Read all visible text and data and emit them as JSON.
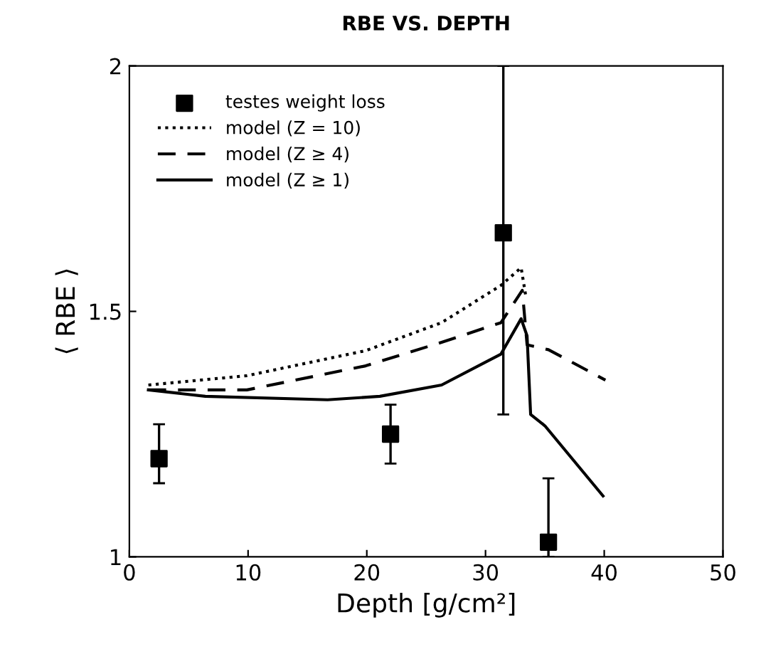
{
  "chart_data": {
    "type": "line",
    "title": "RBE VS. DEPTH",
    "xlabel": "Depth [g/cm²]",
    "ylabel": "⟨ RBE ⟩",
    "xlim": [
      0,
      50
    ],
    "xticks": [
      0,
      10,
      20,
      30,
      40,
      50
    ],
    "ylim": [
      1,
      2
    ],
    "yticks": [
      1,
      1.5,
      2
    ],
    "grid": false,
    "legend": "top left",
    "series": [
      {
        "name": "testes weight loss",
        "type": "scatter",
        "marker": "square",
        "color": "#000000",
        "x": [
          2.5,
          22,
          31.5,
          35.3
        ],
        "values": [
          1.2,
          1.25,
          1.66,
          1.03
        ],
        "errors": [
          [
            1.15,
            1.27
          ],
          [
            1.19,
            1.31
          ],
          [
            1.29,
            2.0
          ],
          [
            1.0,
            1.16
          ]
        ]
      },
      {
        "name": "model (Z = 10)",
        "line_style": "dotted",
        "color": "#000000",
        "x": [
          1.6,
          9.9,
          19.9,
          26.3,
          31.3,
          33,
          33.4
        ],
        "values": [
          1.35,
          1.369,
          1.42,
          1.477,
          1.553,
          1.589,
          1.53
        ]
      },
      {
        "name": "model (Z ≥ 4)",
        "line_style": "dashed",
        "color": "#000000",
        "x": [
          1.6,
          9.9,
          19.9,
          26.3,
          31.3,
          33.1,
          33.5,
          35.3,
          40.1
        ],
        "values": [
          1.34,
          1.34,
          1.389,
          1.437,
          1.477,
          1.543,
          1.432,
          1.422,
          1.36
        ]
      },
      {
        "name": "model (Z ≥ 1)",
        "line_style": "solid",
        "color": "#000000",
        "x": [
          1.6,
          6.4,
          16.7,
          21.1,
          26.3,
          31.3,
          33,
          33.5,
          33.8,
          35,
          39.9
        ],
        "values": [
          1.34,
          1.327,
          1.32,
          1.327,
          1.35,
          1.413,
          1.485,
          1.45,
          1.29,
          1.267,
          1.124
        ]
      }
    ]
  }
}
